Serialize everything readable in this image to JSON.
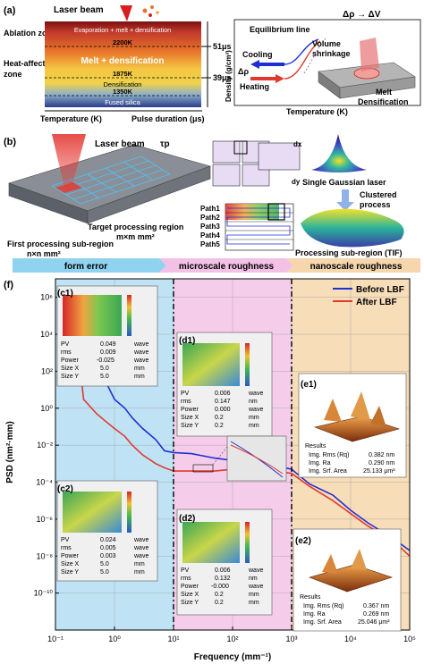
{
  "panel_a": {
    "label": "(a)",
    "laser_beam": "Laser beam",
    "ablation_zone": "Ablation zone",
    "heat_affected_zone": [
      "Heat-affected",
      "zone"
    ],
    "evaporation": "Evaporation + melt + densification",
    "temp_2200": "2200K",
    "melt_densification": "Melt + densification",
    "temp_1875": "1875K",
    "densification": "Densification",
    "temp_1350": "1350K",
    "fused_silica": "Fused silica",
    "time_51": "51μs",
    "time_39": "39μs",
    "x_temp": "Temperature (K)",
    "x_pulse": "Pulse duration (μs)",
    "equilibrium_line": "Equilibrium line",
    "delta_rho_v": "Δρ → ΔV",
    "cooling": "Cooling",
    "delta_rho": "Δρ",
    "heating": "Heating",
    "volume_shrinkage": [
      "Volume",
      "shrinkage"
    ],
    "melt": "Melt",
    "densification2": "Densification",
    "density_axis": "Density (g/cm³)",
    "temperature_axis": "Temperature (K)"
  },
  "panel_b": {
    "label": "(b)",
    "laser_beam": "Laser beam",
    "tau": "τp",
    "target_region": "Target processing region",
    "target_size": "m×m mm²",
    "first_sub": "First processing sub-region",
    "first_size": "n×n mm²",
    "dx": "dx",
    "dy": "dy",
    "single_gaussian": "Single Gaussian laser",
    "clustered": [
      "Clustered",
      "process"
    ],
    "processing_sub": "Processing sub-region (TIF)",
    "paths": [
      "Path1",
      "Path2",
      "Path3",
      "Path4",
      "Path5"
    ]
  },
  "banner": {
    "form_error": "form error",
    "microscale": "microscale roughness",
    "nanoscale": "nanoscale roughness"
  },
  "panel_f": {
    "label": "(f)",
    "legend_before": "Before LBF",
    "legend_after": "After LBF",
    "insets": {
      "c1": {
        "label": "(c1)",
        "rows": [
          [
            "PV",
            "0.049",
            "wave"
          ],
          [
            "rms",
            "0.009",
            "wave"
          ],
          [
            "Power",
            "-0.025",
            "wave"
          ],
          [
            "Size X",
            "5.0",
            "mm"
          ],
          [
            "Size Y",
            "5.0",
            "mm"
          ]
        ]
      },
      "c2": {
        "label": "(c2)",
        "rows": [
          [
            "PV",
            "0.024",
            "wave"
          ],
          [
            "rms",
            "0.005",
            "wave"
          ],
          [
            "Power",
            "0.003",
            "wave"
          ],
          [
            "Size X",
            "5.0",
            "mm"
          ],
          [
            "Size Y",
            "5.0",
            "mm"
          ]
        ]
      },
      "d1": {
        "label": "(d1)",
        "rows": [
          [
            "PV",
            "0.006",
            "wave"
          ],
          [
            "rms",
            "0.147",
            "nm"
          ],
          [
            "Power",
            "0.000",
            "wave"
          ],
          [
            "Size X",
            "0.2",
            "mm"
          ],
          [
            "Size Y",
            "0.2",
            "mm"
          ]
        ]
      },
      "d2": {
        "label": "(d2)",
        "rows": [
          [
            "PV",
            "0.006",
            "wave"
          ],
          [
            "rms",
            "0.132",
            "nm"
          ],
          [
            "Power",
            "-0.000",
            "wave"
          ],
          [
            "Size X",
            "0.2",
            "mm"
          ],
          [
            "Size Y",
            "0.2",
            "mm"
          ]
        ]
      },
      "e1": {
        "label": "(e1)",
        "results": "Results",
        "rows": [
          [
            "Img. Rms (Rq)",
            "0.382 nm"
          ],
          [
            "Img. Ra",
            "0.290 nm"
          ],
          [
            "Img. Srf. Area",
            "25.133 μm²"
          ]
        ]
      },
      "e2": {
        "label": "(e2)",
        "results": "Results",
        "rows": [
          [
            "Img. Rms (Rq)",
            "0.367 nm"
          ],
          [
            "Img. Ra",
            "0.269 nm"
          ],
          [
            "Img. Srf. Area",
            "25.046 μm²"
          ]
        ]
      }
    }
  },
  "chart_data": {
    "type": "line",
    "xlabel": "Frequency (mm⁻¹)",
    "ylabel": "PSD (nm²·mm)",
    "xscale": "log",
    "yscale": "log",
    "xlim": [
      0.1,
      100000
    ],
    "ylim": [
      1e-12,
      10000000.0
    ],
    "x_ticks": [
      "10⁻¹",
      "10⁰",
      "10¹",
      "10²",
      "10³",
      "10⁴",
      "10⁵"
    ],
    "y_ticks": [
      "10⁶",
      "10⁴",
      "10²",
      "10⁰",
      "10⁻²",
      "10⁻⁴",
      "10⁻⁶",
      "10⁻⁸",
      "10⁻¹⁰"
    ],
    "legend_position": "top-right",
    "regions": [
      {
        "name": "form error",
        "x": [
          0.1,
          10
        ],
        "color": "#bfe3f5"
      },
      {
        "name": "microscale roughness",
        "x": [
          10,
          1000
        ],
        "color": "#f5cdea"
      },
      {
        "name": "nanoscale roughness",
        "x": [
          1000,
          100000
        ],
        "color": "#f7ddb8"
      }
    ],
    "series": [
      {
        "name": "Before LBF",
        "color": "#1f2fd6",
        "x": [
          0.2,
          0.3,
          0.5,
          0.7,
          1,
          1.5,
          2,
          3,
          5,
          7,
          10,
          20,
          50,
          100,
          200,
          500,
          1000,
          2000,
          5000,
          10000,
          20000,
          50000,
          100000
        ],
        "y": [
          800000,
          5000,
          200,
          30,
          3,
          1,
          0.3,
          0.08,
          0.02,
          0.005,
          0.004,
          0.0035,
          0.002,
          0.0015,
          0.001,
          0.0008,
          0.0005,
          8e-05,
          2e-05,
          3e-06,
          6e-07,
          1e-07,
          2e-08
        ]
      },
      {
        "name": "After LBF",
        "color": "#e03a2f",
        "x": [
          0.2,
          0.3,
          0.5,
          0.7,
          1,
          1.5,
          2,
          3,
          5,
          7,
          10,
          20,
          50,
          100,
          200,
          500,
          1000,
          2000,
          5000,
          10000,
          20000,
          50000,
          100000
        ],
        "y": [
          300000,
          3,
          0.5,
          0.2,
          0.08,
          0.03,
          0.01,
          0.003,
          0.001,
          0.0006,
          0.0004,
          0.0004,
          0.0004,
          0.0005,
          0.0005,
          0.0004,
          0.0003,
          6e-05,
          1e-05,
          2e-06,
          4e-07,
          8e-08,
          1e-08
        ]
      }
    ],
    "vlines": [
      10,
      1000
    ]
  }
}
